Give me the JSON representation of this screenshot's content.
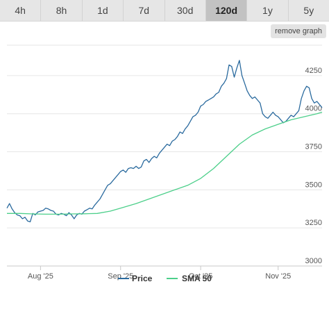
{
  "tabs": [
    {
      "label": "4h",
      "active": false
    },
    {
      "label": "8h",
      "active": false
    },
    {
      "label": "1d",
      "active": false
    },
    {
      "label": "7d",
      "active": false
    },
    {
      "label": "30d",
      "active": false
    },
    {
      "label": "120d",
      "active": true
    },
    {
      "label": "1y",
      "active": false
    },
    {
      "label": "5y",
      "active": false
    }
  ],
  "remove_graph_label": "remove graph",
  "colors": {
    "price": "#2a6a9e",
    "sma": "#4ccf8a",
    "grid": "#e6e6e6",
    "axis": "#c8c8c8"
  },
  "chart_data": {
    "type": "line",
    "x_ticks": [
      "Aug '25",
      "Sep '25",
      "Oct '25",
      "Nov '25"
    ],
    "x_tick_positions": [
      13,
      44,
      75,
      105
    ],
    "x_range": [
      0,
      122
    ],
    "ylim": [
      3000,
      4450
    ],
    "y_ticks": [
      3000,
      3250,
      3500,
      3750,
      4000,
      4250
    ],
    "grid": true,
    "legend": "bottom",
    "series": [
      {
        "name": "Price",
        "x": [
          0,
          1,
          2,
          3,
          4,
          5,
          6,
          7,
          8,
          9,
          10,
          11,
          12,
          13,
          14,
          15,
          16,
          17,
          18,
          19,
          20,
          21,
          22,
          23,
          24,
          25,
          26,
          27,
          28,
          29,
          30,
          31,
          32,
          33,
          34,
          35,
          36,
          37,
          38,
          39,
          40,
          41,
          42,
          43,
          44,
          45,
          46,
          47,
          48,
          49,
          50,
          51,
          52,
          53,
          54,
          55,
          56,
          57,
          58,
          59,
          60,
          61,
          62,
          63,
          64,
          65,
          66,
          67,
          68,
          69,
          70,
          71,
          72,
          73,
          74,
          75,
          76,
          77,
          78,
          79,
          80,
          81,
          82,
          83,
          84,
          85,
          86,
          87,
          88,
          89,
          90,
          91,
          92,
          93,
          94,
          95,
          96,
          97,
          98,
          99,
          100,
          101,
          102,
          103,
          104,
          105,
          106,
          107,
          108,
          109,
          110,
          111,
          112,
          113,
          114,
          115,
          116,
          117,
          118,
          119,
          120,
          121,
          122
        ],
        "values": [
          3380,
          3410,
          3375,
          3350,
          3335,
          3330,
          3310,
          3320,
          3295,
          3290,
          3345,
          3335,
          3355,
          3360,
          3365,
          3380,
          3375,
          3365,
          3360,
          3340,
          3335,
          3345,
          3340,
          3330,
          3350,
          3335,
          3310,
          3335,
          3345,
          3340,
          3360,
          3370,
          3380,
          3375,
          3400,
          3420,
          3440,
          3470,
          3500,
          3530,
          3540,
          3560,
          3580,
          3600,
          3620,
          3630,
          3615,
          3640,
          3645,
          3640,
          3655,
          3640,
          3650,
          3690,
          3700,
          3680,
          3705,
          3720,
          3710,
          3740,
          3760,
          3780,
          3800,
          3790,
          3820,
          3830,
          3850,
          3880,
          3870,
          3900,
          3920,
          3950,
          3980,
          3990,
          4010,
          4050,
          4060,
          4080,
          4090,
          4100,
          4110,
          4130,
          4140,
          4180,
          4200,
          4230,
          4320,
          4310,
          4240,
          4300,
          4350,
          4250,
          4200,
          4150,
          4120,
          4100,
          4110,
          4090,
          4070,
          4000,
          3980,
          3970,
          3990,
          4010,
          3990,
          3980,
          3960,
          3940,
          3950,
          3970,
          3990,
          3980,
          4000,
          4020,
          4100,
          4150,
          4180,
          4170,
          4100,
          4070,
          4080,
          4060,
          4040
        ]
      },
      {
        "name": "SMA 50",
        "x": [
          0,
          5,
          10,
          15,
          20,
          25,
          30,
          35,
          40,
          45,
          50,
          55,
          60,
          65,
          70,
          75,
          80,
          85,
          90,
          95,
          100,
          105,
          110,
          115,
          120,
          122
        ],
        "values": [
          3345,
          3345,
          3342,
          3340,
          3340,
          3342,
          3343,
          3345,
          3360,
          3385,
          3410,
          3440,
          3470,
          3500,
          3530,
          3575,
          3640,
          3720,
          3800,
          3860,
          3900,
          3930,
          3960,
          3980,
          4000,
          4010
        ]
      }
    ]
  }
}
